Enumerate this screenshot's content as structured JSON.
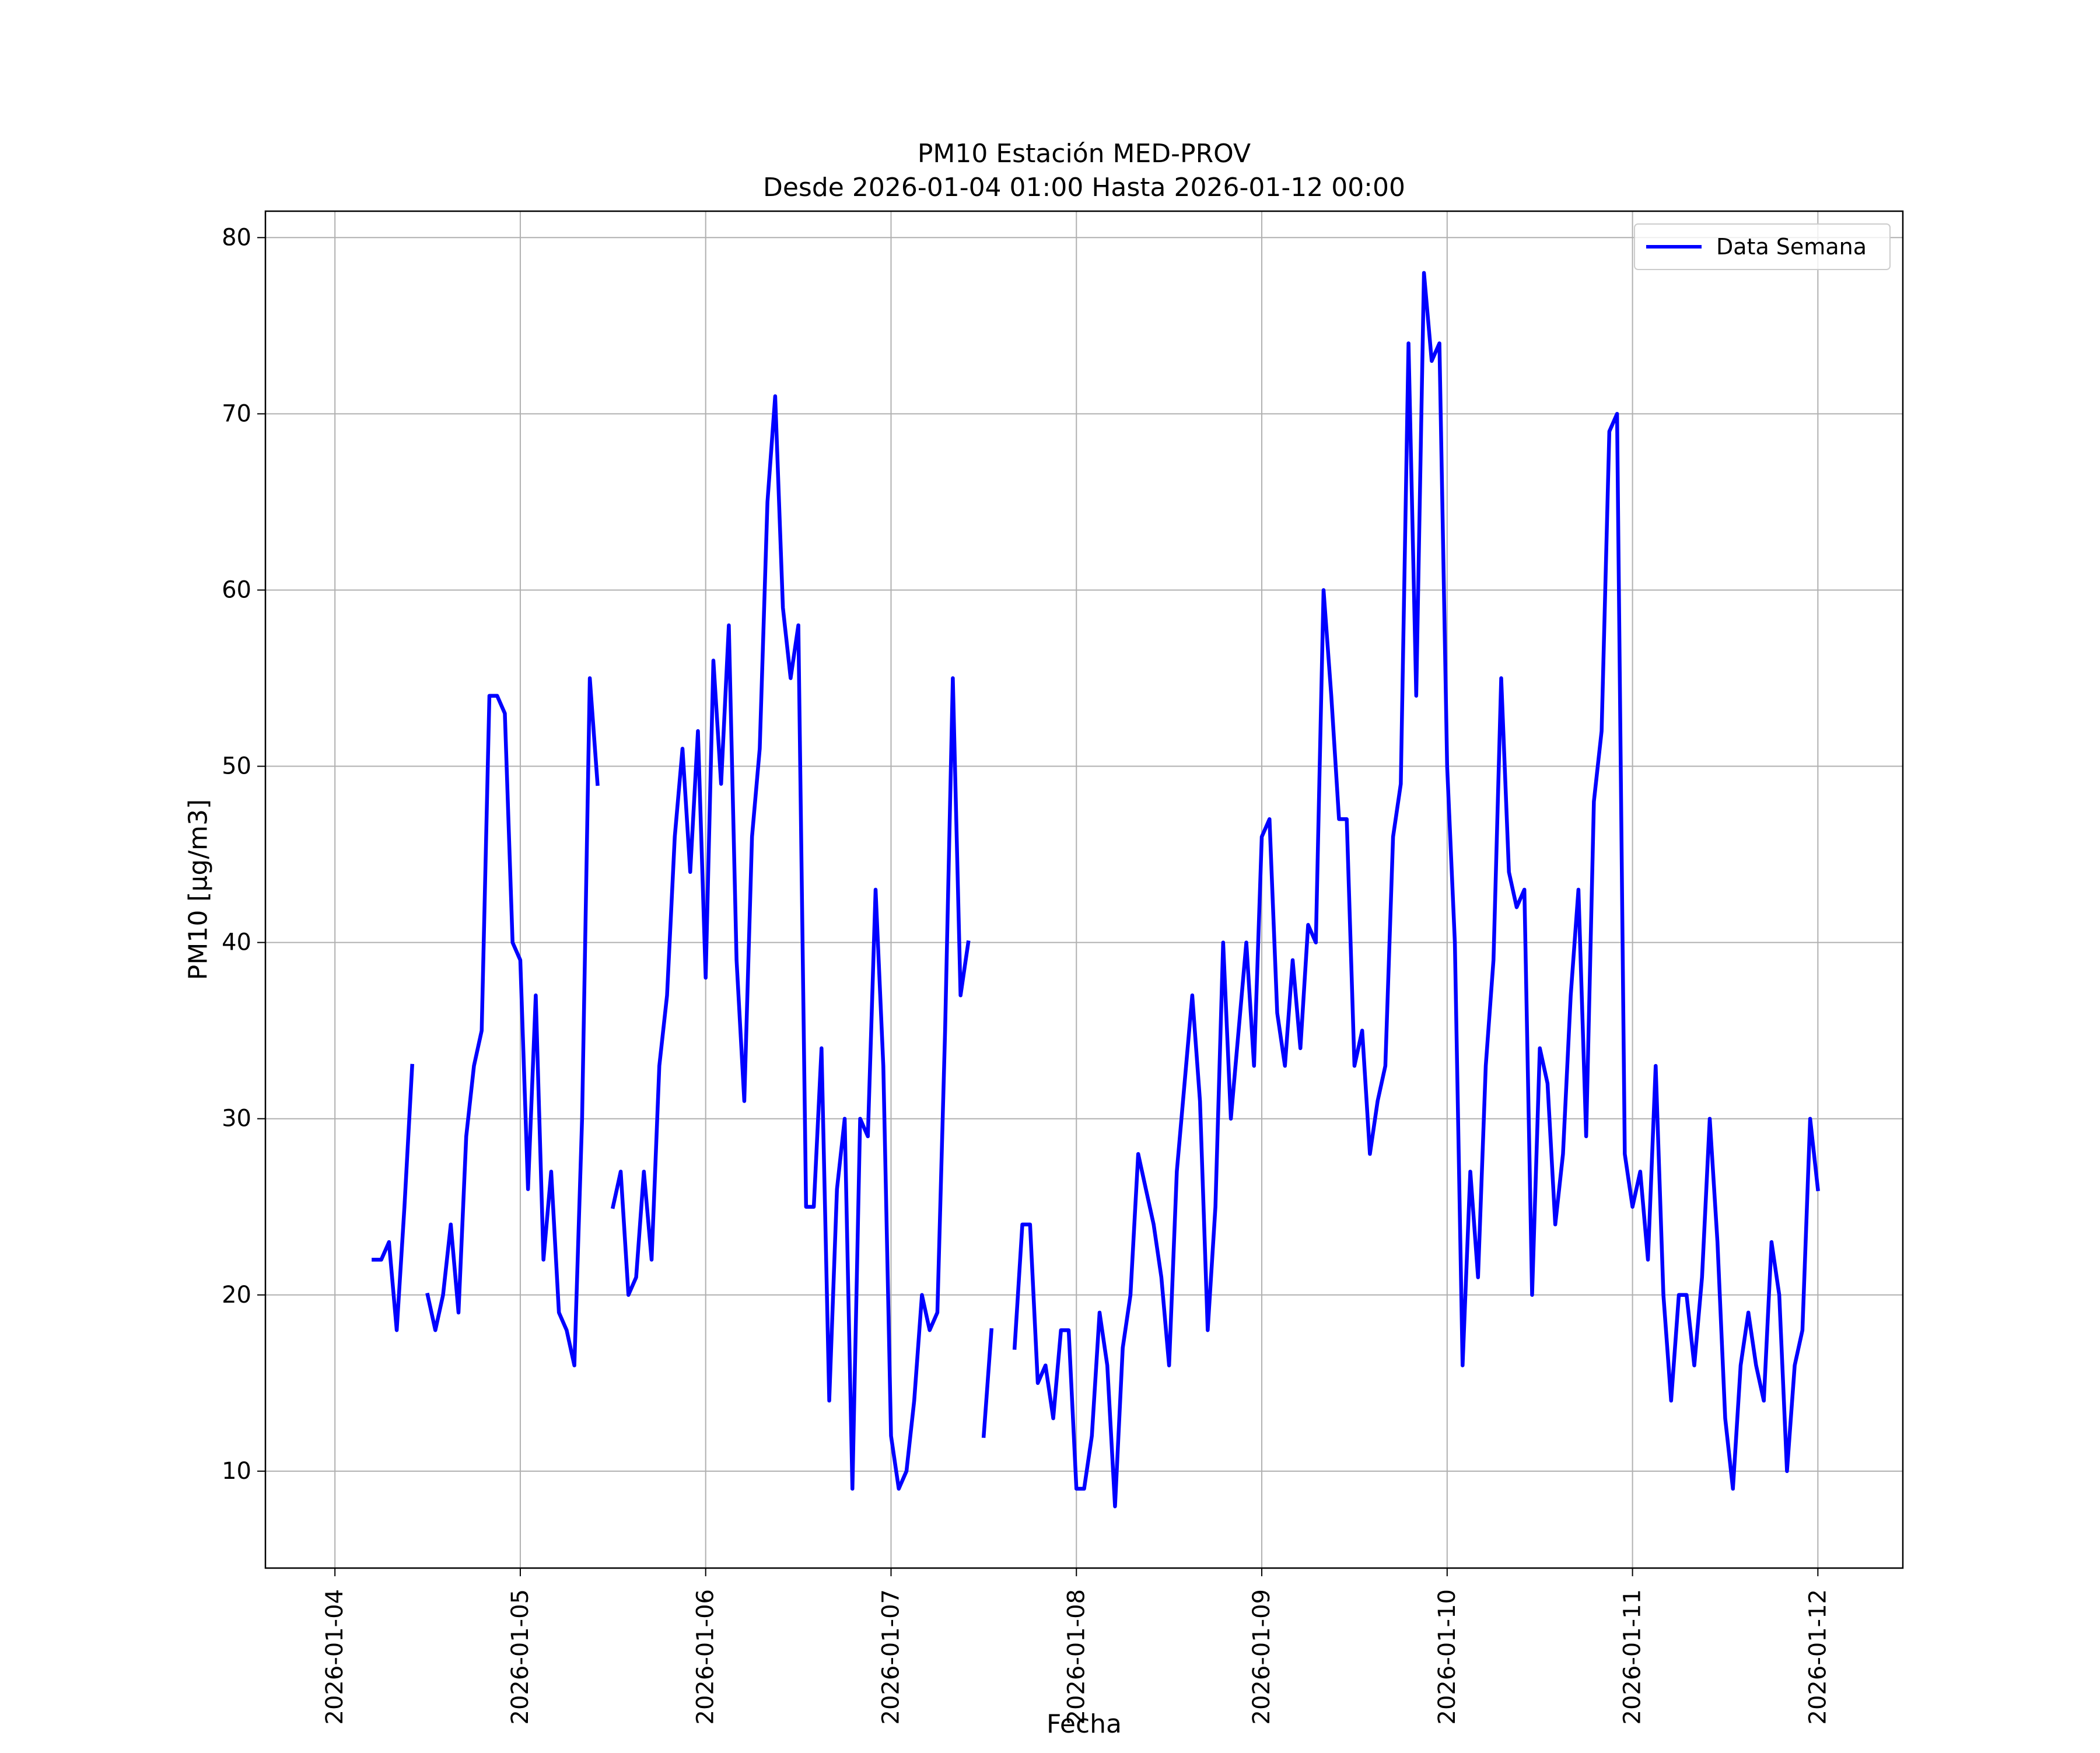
{
  "chart_data": {
    "type": "line",
    "title": "PM10 Estación MED-PROV",
    "subtitle": "Desde 2026-01-04 01:00 Hasta 2026-01-12 00:00",
    "xlabel": "Fecha",
    "ylabel": "PM10 [μg/m3]",
    "x_range": [
      "2026-01-03 15:00",
      "2026-01-12 11:00"
    ],
    "ylim": [
      4.5,
      81.5
    ],
    "x_ticks": [
      "2026-01-04",
      "2026-01-05",
      "2026-01-06",
      "2026-01-07",
      "2026-01-08",
      "2026-01-09",
      "2026-01-10",
      "2026-01-11",
      "2026-01-12"
    ],
    "y_ticks": [
      10,
      20,
      30,
      40,
      50,
      60,
      70,
      80
    ],
    "grid": true,
    "legend_position": "top-right",
    "colors": {
      "series": "#0000ff",
      "grid": "#b0b0b0",
      "axes": "#000000"
    },
    "series": [
      {
        "name": "Data Semana",
        "points": [
          [
            "2026-01-04 05:00",
            22
          ],
          [
            "2026-01-04 06:00",
            22
          ],
          [
            "2026-01-04 07:00",
            23
          ],
          [
            "2026-01-04 08:00",
            18
          ],
          [
            "2026-01-04 09:00",
            25
          ],
          [
            "2026-01-04 10:00",
            33
          ],
          [
            "2026-01-04 11:00",
            null
          ],
          [
            "2026-01-04 12:00",
            20
          ],
          [
            "2026-01-04 13:00",
            18
          ],
          [
            "2026-01-04 14:00",
            20
          ],
          [
            "2026-01-04 15:00",
            24
          ],
          [
            "2026-01-04 16:00",
            19
          ],
          [
            "2026-01-04 17:00",
            29
          ],
          [
            "2026-01-04 18:00",
            33
          ],
          [
            "2026-01-04 19:00",
            35
          ],
          [
            "2026-01-04 20:00",
            54
          ],
          [
            "2026-01-04 21:00",
            54
          ],
          [
            "2026-01-04 22:00",
            53
          ],
          [
            "2026-01-04 23:00",
            40
          ],
          [
            "2026-01-05 00:00",
            39
          ],
          [
            "2026-01-05 01:00",
            26
          ],
          [
            "2026-01-05 02:00",
            37
          ],
          [
            "2026-01-05 03:00",
            22
          ],
          [
            "2026-01-05 04:00",
            27
          ],
          [
            "2026-01-05 05:00",
            19
          ],
          [
            "2026-01-05 06:00",
            18
          ],
          [
            "2026-01-05 07:00",
            16
          ],
          [
            "2026-01-05 08:00",
            30
          ],
          [
            "2026-01-05 09:00",
            55
          ],
          [
            "2026-01-05 10:00",
            49
          ],
          [
            "2026-01-05 11:00",
            null
          ],
          [
            "2026-01-05 12:00",
            25
          ],
          [
            "2026-01-05 13:00",
            27
          ],
          [
            "2026-01-05 14:00",
            20
          ],
          [
            "2026-01-05 15:00",
            21
          ],
          [
            "2026-01-05 16:00",
            27
          ],
          [
            "2026-01-05 17:00",
            22
          ],
          [
            "2026-01-05 18:00",
            33
          ],
          [
            "2026-01-05 19:00",
            37
          ],
          [
            "2026-01-05 20:00",
            46
          ],
          [
            "2026-01-05 21:00",
            51
          ],
          [
            "2026-01-05 22:00",
            44
          ],
          [
            "2026-01-05 23:00",
            52
          ],
          [
            "2026-01-06 00:00",
            38
          ],
          [
            "2026-01-06 01:00",
            56
          ],
          [
            "2026-01-06 02:00",
            49
          ],
          [
            "2026-01-06 03:00",
            58
          ],
          [
            "2026-01-06 04:00",
            39
          ],
          [
            "2026-01-06 05:00",
            31
          ],
          [
            "2026-01-06 06:00",
            46
          ],
          [
            "2026-01-06 07:00",
            51
          ],
          [
            "2026-01-06 08:00",
            65
          ],
          [
            "2026-01-06 09:00",
            71
          ],
          [
            "2026-01-06 10:00",
            59
          ],
          [
            "2026-01-06 11:00",
            55
          ],
          [
            "2026-01-06 12:00",
            58
          ],
          [
            "2026-01-06 13:00",
            25
          ],
          [
            "2026-01-06 14:00",
            25
          ],
          [
            "2026-01-06 15:00",
            34
          ],
          [
            "2026-01-06 16:00",
            14
          ],
          [
            "2026-01-06 17:00",
            26
          ],
          [
            "2026-01-06 18:00",
            30
          ],
          [
            "2026-01-06 19:00",
            9
          ],
          [
            "2026-01-06 20:00",
            30
          ],
          [
            "2026-01-06 21:00",
            29
          ],
          [
            "2026-01-06 22:00",
            43
          ],
          [
            "2026-01-06 23:00",
            33
          ],
          [
            "2026-01-07 00:00",
            12
          ],
          [
            "2026-01-07 01:00",
            9
          ],
          [
            "2026-01-07 02:00",
            10
          ],
          [
            "2026-01-07 03:00",
            14
          ],
          [
            "2026-01-07 04:00",
            20
          ],
          [
            "2026-01-07 05:00",
            18
          ],
          [
            "2026-01-07 06:00",
            19
          ],
          [
            "2026-01-07 07:00",
            35
          ],
          [
            "2026-01-07 08:00",
            55
          ],
          [
            "2026-01-07 09:00",
            37
          ],
          [
            "2026-01-07 10:00",
            40
          ],
          [
            "2026-01-07 11:00",
            null
          ],
          [
            "2026-01-07 12:00",
            12
          ],
          [
            "2026-01-07 13:00",
            18
          ],
          [
            "2026-01-07 14:00",
            null
          ],
          [
            "2026-01-07 15:00",
            null
          ],
          [
            "2026-01-07 16:00",
            17
          ],
          [
            "2026-01-07 17:00",
            24
          ],
          [
            "2026-01-07 18:00",
            24
          ],
          [
            "2026-01-07 19:00",
            15
          ],
          [
            "2026-01-07 20:00",
            16
          ],
          [
            "2026-01-07 21:00",
            13
          ],
          [
            "2026-01-07 22:00",
            18
          ],
          [
            "2026-01-07 23:00",
            18
          ],
          [
            "2026-01-08 00:00",
            9
          ],
          [
            "2026-01-08 01:00",
            9
          ],
          [
            "2026-01-08 02:00",
            12
          ],
          [
            "2026-01-08 03:00",
            19
          ],
          [
            "2026-01-08 04:00",
            16
          ],
          [
            "2026-01-08 05:00",
            8
          ],
          [
            "2026-01-08 06:00",
            17
          ],
          [
            "2026-01-08 07:00",
            20
          ],
          [
            "2026-01-08 08:00",
            28
          ],
          [
            "2026-01-08 09:00",
            26
          ],
          [
            "2026-01-08 10:00",
            24
          ],
          [
            "2026-01-08 11:00",
            21
          ],
          [
            "2026-01-08 12:00",
            16
          ],
          [
            "2026-01-08 13:00",
            27
          ],
          [
            "2026-01-08 14:00",
            32
          ],
          [
            "2026-01-08 15:00",
            37
          ],
          [
            "2026-01-08 16:00",
            31
          ],
          [
            "2026-01-08 17:00",
            18
          ],
          [
            "2026-01-08 18:00",
            25
          ],
          [
            "2026-01-08 19:00",
            40
          ],
          [
            "2026-01-08 20:00",
            30
          ],
          [
            "2026-01-08 21:00",
            35
          ],
          [
            "2026-01-08 22:00",
            40
          ],
          [
            "2026-01-08 23:00",
            33
          ],
          [
            "2026-01-09 00:00",
            46
          ],
          [
            "2026-01-09 01:00",
            47
          ],
          [
            "2026-01-09 02:00",
            36
          ],
          [
            "2026-01-09 03:00",
            33
          ],
          [
            "2026-01-09 04:00",
            39
          ],
          [
            "2026-01-09 05:00",
            34
          ],
          [
            "2026-01-09 06:00",
            41
          ],
          [
            "2026-01-09 07:00",
            40
          ],
          [
            "2026-01-09 08:00",
            60
          ],
          [
            "2026-01-09 09:00",
            54
          ],
          [
            "2026-01-09 10:00",
            47
          ],
          [
            "2026-01-09 11:00",
            47
          ],
          [
            "2026-01-09 12:00",
            33
          ],
          [
            "2026-01-09 13:00",
            35
          ],
          [
            "2026-01-09 14:00",
            28
          ],
          [
            "2026-01-09 15:00",
            31
          ],
          [
            "2026-01-09 16:00",
            33
          ],
          [
            "2026-01-09 17:00",
            46
          ],
          [
            "2026-01-09 18:00",
            49
          ],
          [
            "2026-01-09 19:00",
            74
          ],
          [
            "2026-01-09 20:00",
            54
          ],
          [
            "2026-01-09 21:00",
            78
          ],
          [
            "2026-01-09 22:00",
            73
          ],
          [
            "2026-01-09 23:00",
            74
          ],
          [
            "2026-01-10 00:00",
            50
          ],
          [
            "2026-01-10 01:00",
            40
          ],
          [
            "2026-01-10 02:00",
            16
          ],
          [
            "2026-01-10 03:00",
            27
          ],
          [
            "2026-01-10 04:00",
            21
          ],
          [
            "2026-01-10 05:00",
            33
          ],
          [
            "2026-01-10 06:00",
            39
          ],
          [
            "2026-01-10 07:00",
            55
          ],
          [
            "2026-01-10 08:00",
            44
          ],
          [
            "2026-01-10 09:00",
            42
          ],
          [
            "2026-01-10 10:00",
            43
          ],
          [
            "2026-01-10 11:00",
            20
          ],
          [
            "2026-01-10 12:00",
            34
          ],
          [
            "2026-01-10 13:00",
            32
          ],
          [
            "2026-01-10 14:00",
            24
          ],
          [
            "2026-01-10 15:00",
            28
          ],
          [
            "2026-01-10 16:00",
            37
          ],
          [
            "2026-01-10 17:00",
            43
          ],
          [
            "2026-01-10 18:00",
            29
          ],
          [
            "2026-01-10 19:00",
            48
          ],
          [
            "2026-01-10 20:00",
            52
          ],
          [
            "2026-01-10 21:00",
            69
          ],
          [
            "2026-01-10 22:00",
            70
          ],
          [
            "2026-01-10 23:00",
            28
          ],
          [
            "2026-01-11 00:00",
            25
          ],
          [
            "2026-01-11 01:00",
            27
          ],
          [
            "2026-01-11 02:00",
            22
          ],
          [
            "2026-01-11 03:00",
            33
          ],
          [
            "2026-01-11 04:00",
            20
          ],
          [
            "2026-01-11 05:00",
            14
          ],
          [
            "2026-01-11 06:00",
            20
          ],
          [
            "2026-01-11 07:00",
            20
          ],
          [
            "2026-01-11 08:00",
            16
          ],
          [
            "2026-01-11 09:00",
            21
          ],
          [
            "2026-01-11 10:00",
            30
          ],
          [
            "2026-01-11 11:00",
            23
          ],
          [
            "2026-01-11 12:00",
            13
          ],
          [
            "2026-01-11 13:00",
            9
          ],
          [
            "2026-01-11 14:00",
            16
          ],
          [
            "2026-01-11 15:00",
            19
          ],
          [
            "2026-01-11 16:00",
            16
          ],
          [
            "2026-01-11 17:00",
            14
          ],
          [
            "2026-01-11 18:00",
            23
          ],
          [
            "2026-01-11 19:00",
            20
          ],
          [
            "2026-01-11 20:00",
            10
          ],
          [
            "2026-01-11 21:00",
            16
          ],
          [
            "2026-01-11 22:00",
            18
          ],
          [
            "2026-01-11 23:00",
            30
          ],
          [
            "2026-01-12 00:00",
            26
          ]
        ]
      }
    ]
  }
}
